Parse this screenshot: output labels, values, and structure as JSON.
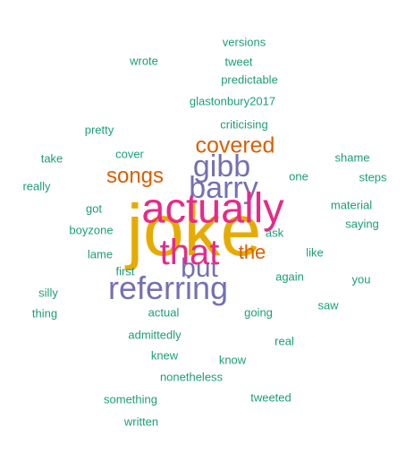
{
  "colors": {
    "teal": "#1b9e77",
    "orange": "#d95f02",
    "purple": "#7570b3",
    "magenta": "#e7298a",
    "gold": "#e6ab02"
  },
  "words": [
    {
      "text": "joke",
      "color": "gold"
    },
    {
      "text": "actually",
      "color": "magenta"
    },
    {
      "text": "that",
      "color": "magenta"
    },
    {
      "text": "gibb",
      "color": "purple"
    },
    {
      "text": "barry",
      "color": "purple"
    },
    {
      "text": "but",
      "color": "purple"
    },
    {
      "text": "referring",
      "color": "purple"
    },
    {
      "text": "covered",
      "color": "orange"
    },
    {
      "text": "songs",
      "color": "orange"
    },
    {
      "text": "the",
      "color": "orange"
    },
    {
      "text": "versions",
      "color": "teal"
    },
    {
      "text": "wrote",
      "color": "teal"
    },
    {
      "text": "tweet",
      "color": "teal"
    },
    {
      "text": "predictable",
      "color": "teal"
    },
    {
      "text": "glastonbury2017",
      "color": "teal"
    },
    {
      "text": "criticising",
      "color": "teal"
    },
    {
      "text": "pretty",
      "color": "teal"
    },
    {
      "text": "cover",
      "color": "teal"
    },
    {
      "text": "take",
      "color": "teal"
    },
    {
      "text": "shame",
      "color": "teal"
    },
    {
      "text": "one",
      "color": "teal"
    },
    {
      "text": "steps",
      "color": "teal"
    },
    {
      "text": "really",
      "color": "teal"
    },
    {
      "text": "material",
      "color": "teal"
    },
    {
      "text": "got",
      "color": "teal"
    },
    {
      "text": "saying",
      "color": "teal"
    },
    {
      "text": "boyzone",
      "color": "teal"
    },
    {
      "text": "ask",
      "color": "teal"
    },
    {
      "text": "lame",
      "color": "teal"
    },
    {
      "text": "like",
      "color": "teal"
    },
    {
      "text": "first",
      "color": "teal"
    },
    {
      "text": "again",
      "color": "teal"
    },
    {
      "text": "you",
      "color": "teal"
    },
    {
      "text": "silly",
      "color": "teal"
    },
    {
      "text": "saw",
      "color": "teal"
    },
    {
      "text": "thing",
      "color": "teal"
    },
    {
      "text": "actual",
      "color": "teal"
    },
    {
      "text": "going",
      "color": "teal"
    },
    {
      "text": "admittedly",
      "color": "teal"
    },
    {
      "text": "real",
      "color": "teal"
    },
    {
      "text": "knew",
      "color": "teal"
    },
    {
      "text": "know",
      "color": "teal"
    },
    {
      "text": "nonetheless",
      "color": "teal"
    },
    {
      "text": "something",
      "color": "teal"
    },
    {
      "text": "tweeted",
      "color": "teal"
    },
    {
      "text": "written",
      "color": "teal"
    }
  ]
}
